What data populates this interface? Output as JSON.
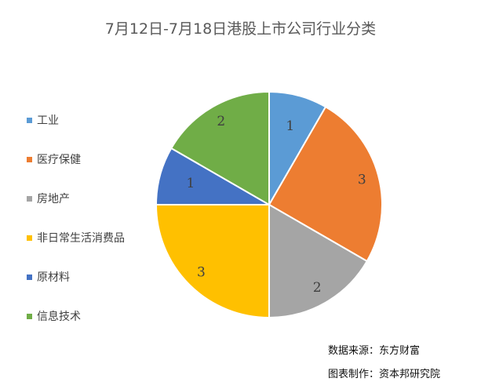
{
  "chart_data": {
    "type": "pie",
    "title": "7月12日-7月18日港股上市公司行业分类",
    "categories": [
      "工业",
      "医疗保健",
      "房地产",
      "非日常生活消费品",
      "原材料",
      "信息技术"
    ],
    "values": [
      1,
      3,
      2,
      3,
      1,
      2
    ],
    "colors": [
      "#5B9BD5",
      "#ED7D31",
      "#A5A5A5",
      "#FFC000",
      "#4472C4",
      "#70AD47"
    ],
    "data_labels": [
      "1",
      "3",
      "2",
      "3",
      "1",
      "2"
    ],
    "legend_position": "left",
    "start_angle": "12 o'clock",
    "direction": "clockwise"
  },
  "footer": {
    "source": "数据来源：东方财富",
    "made_by": "图表制作：资本邦研究院"
  }
}
